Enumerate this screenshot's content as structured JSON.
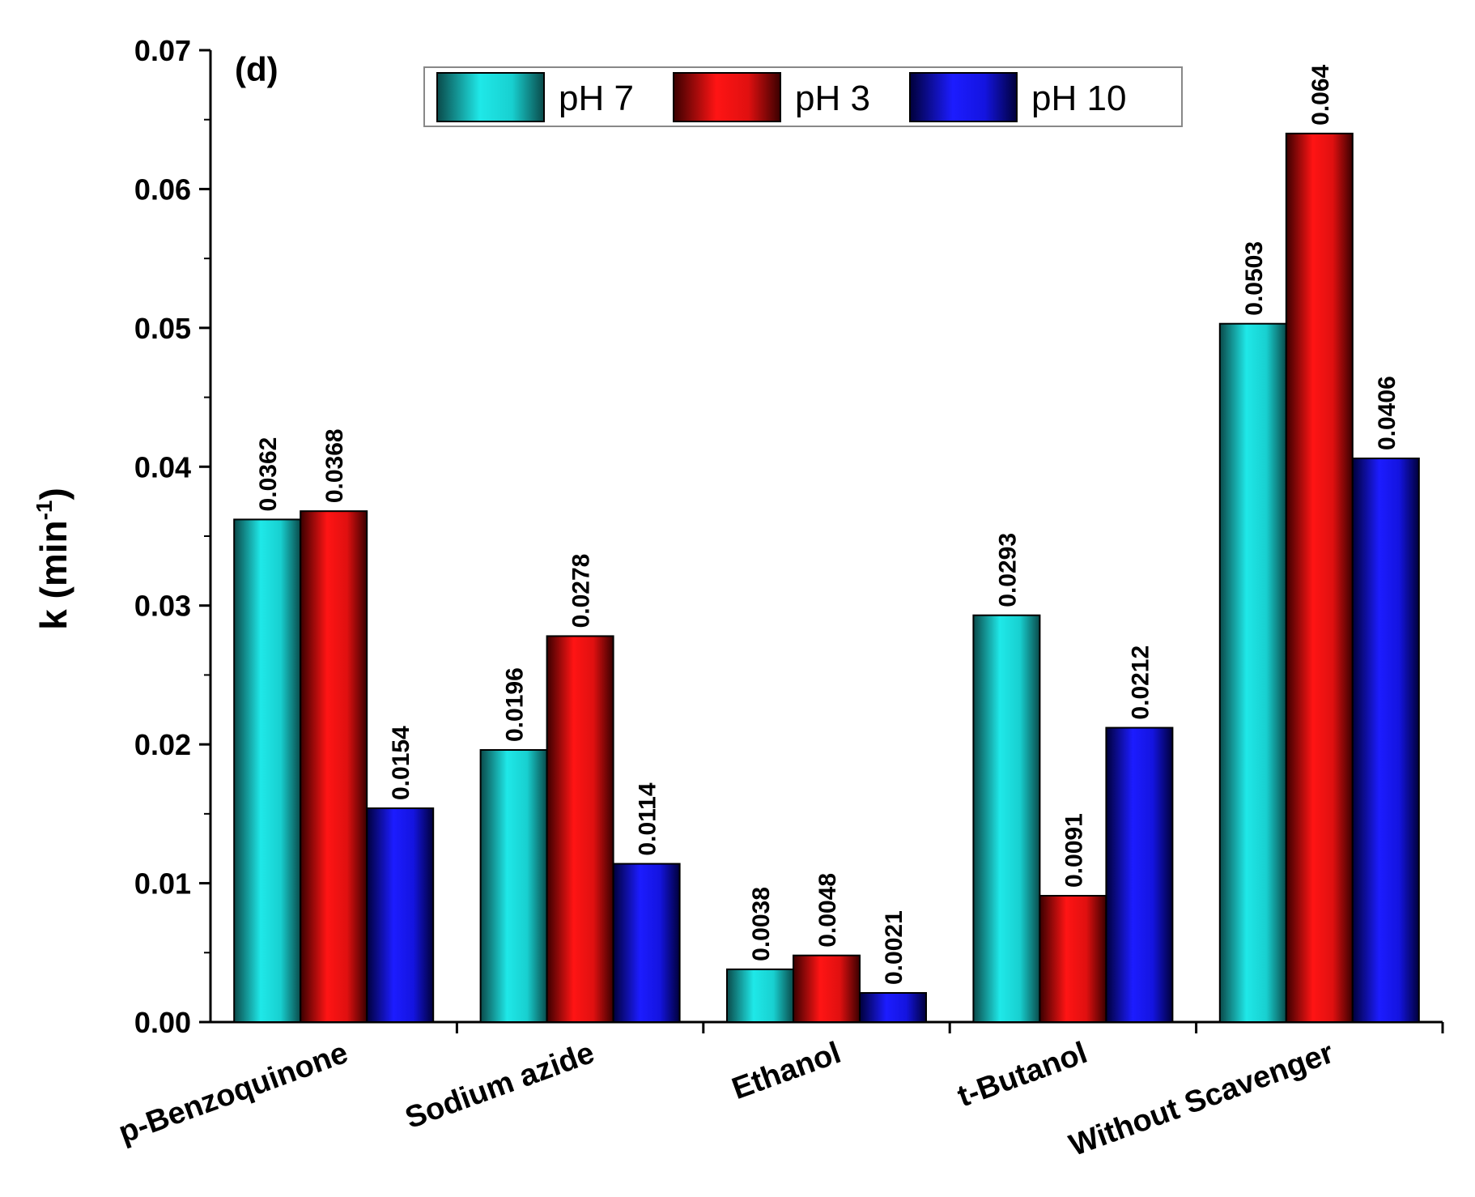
{
  "chart_data": {
    "type": "bar",
    "panel_label": "(d)",
    "title": "",
    "xlabel": "",
    "ylabel": "k (min",
    "ylabel_sup": "-1",
    "ylabel_close": ")",
    "ylim": [
      0,
      0.07
    ],
    "yticks": [
      "0.00",
      "0.01",
      "0.02",
      "0.03",
      "0.04",
      "0.05",
      "0.06",
      "0.07"
    ],
    "categories": [
      "p-Benzoquinone",
      "Sodium azide",
      "Ethanol",
      "t-Butanol",
      "Without Scavenger"
    ],
    "series": [
      {
        "name": "pH 7",
        "color": "#19d6d6",
        "values": [
          0.0362,
          0.0196,
          0.0038,
          0.0293,
          0.0503
        ],
        "labels": [
          "0.0362",
          "0.0196",
          "0.0038",
          "0.0293",
          "0.0503"
        ]
      },
      {
        "name": "pH 3",
        "color": "#ee1111",
        "values": [
          0.0368,
          0.0278,
          0.0048,
          0.0091,
          0.064
        ],
        "labels": [
          "0.0368",
          "0.0278",
          "0.0048",
          "0.0091",
          "0.064"
        ]
      },
      {
        "name": "pH 10",
        "color": "#1a1af0",
        "values": [
          0.0154,
          0.0114,
          0.0021,
          0.0212,
          0.0406
        ],
        "labels": [
          "0.0154",
          "0.0114",
          "0.0021",
          "0.0212",
          "0.0406"
        ]
      }
    ],
    "legend_position": "top",
    "grid": false
  }
}
